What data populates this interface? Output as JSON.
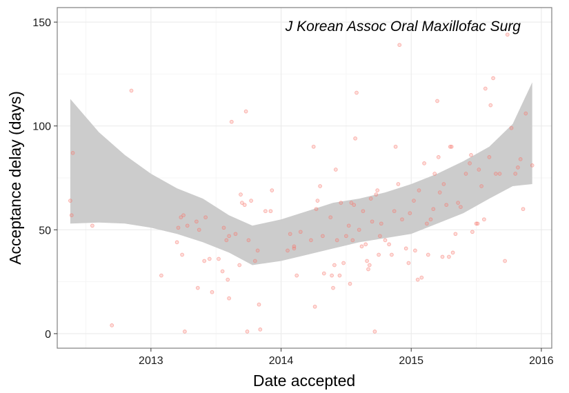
{
  "chart_data": {
    "type": "scatter",
    "title": "J Korean Assoc Oral Maxillofac Surg",
    "xlabel": "Date accepted",
    "ylabel": "Acceptance delay (days)",
    "xlim": [
      2012.28,
      2016.08
    ],
    "ylim": [
      -7,
      157
    ],
    "xticks": [
      2013,
      2014,
      2015,
      2016
    ],
    "xtick_labels": [
      "2013",
      "2014",
      "2015",
      "2016"
    ],
    "yticks": [
      0,
      50,
      100,
      150
    ],
    "ytick_labels": [
      "0",
      "50",
      "100",
      "150"
    ],
    "grid": true,
    "colors": {
      "point": "#F8766D",
      "band": "#CCCCCC",
      "grid_major": "#EBEBEB",
      "grid_minor": "#F5F5F5",
      "panel_border": "#7F7F7F"
    },
    "band": {
      "name": "loess 95% confidence band",
      "x": [
        2012.38,
        2012.6,
        2012.8,
        2013.0,
        2013.2,
        2013.4,
        2013.6,
        2013.78,
        2014.0,
        2014.2,
        2014.4,
        2014.6,
        2014.8,
        2015.0,
        2015.2,
        2015.4,
        2015.6,
        2015.78,
        2015.93
      ],
      "lower": [
        53,
        53.5,
        53,
        51,
        48,
        44,
        39,
        33,
        35,
        38,
        41,
        44,
        46,
        48,
        53,
        58,
        65,
        71,
        72
      ],
      "upper": [
        113,
        97,
        86,
        77,
        70,
        65,
        57,
        52,
        55,
        59,
        63,
        65,
        68,
        72,
        77,
        83,
        90,
        101,
        121
      ]
    },
    "series": [
      {
        "name": "articles",
        "points": [
          [
            2012.38,
            64
          ],
          [
            2012.39,
            57
          ],
          [
            2012.4,
            87
          ],
          [
            2012.55,
            52
          ],
          [
            2012.7,
            4
          ],
          [
            2012.85,
            117
          ],
          [
            2013.08,
            28
          ],
          [
            2013.2,
            44
          ],
          [
            2013.21,
            51
          ],
          [
            2013.23,
            56
          ],
          [
            2013.24,
            38
          ],
          [
            2013.25,
            57
          ],
          [
            2013.26,
            1
          ],
          [
            2013.28,
            52
          ],
          [
            2013.35,
            54
          ],
          [
            2013.36,
            22
          ],
          [
            2013.37,
            50
          ],
          [
            2013.41,
            35
          ],
          [
            2013.42,
            56
          ],
          [
            2013.45,
            36
          ],
          [
            2013.47,
            20
          ],
          [
            2013.52,
            36
          ],
          [
            2013.55,
            30
          ],
          [
            2013.56,
            51
          ],
          [
            2013.58,
            45
          ],
          [
            2013.59,
            26
          ],
          [
            2013.6,
            47
          ],
          [
            2013.6,
            17
          ],
          [
            2013.62,
            102
          ],
          [
            2013.65,
            48
          ],
          [
            2013.68,
            33
          ],
          [
            2013.69,
            67
          ],
          [
            2013.7,
            63
          ],
          [
            2013.72,
            62
          ],
          [
            2013.73,
            107
          ],
          [
            2013.74,
            1
          ],
          [
            2013.75,
            45
          ],
          [
            2013.77,
            64
          ],
          [
            2013.8,
            35
          ],
          [
            2013.82,
            40
          ],
          [
            2013.83,
            14
          ],
          [
            2013.84,
            2
          ],
          [
            2013.88,
            59
          ],
          [
            2013.92,
            59
          ],
          [
            2013.93,
            69
          ],
          [
            2014.05,
            40
          ],
          [
            2014.07,
            48
          ],
          [
            2014.1,
            42
          ],
          [
            2014.1,
            41
          ],
          [
            2014.12,
            28
          ],
          [
            2014.15,
            49
          ],
          [
            2014.23,
            45
          ],
          [
            2014.25,
            90
          ],
          [
            2014.26,
            13
          ],
          [
            2014.27,
            60
          ],
          [
            2014.28,
            64
          ],
          [
            2014.3,
            71
          ],
          [
            2014.32,
            47
          ],
          [
            2014.33,
            29
          ],
          [
            2014.38,
            56
          ],
          [
            2014.39,
            28
          ],
          [
            2014.4,
            22
          ],
          [
            2014.41,
            33
          ],
          [
            2014.42,
            79
          ],
          [
            2014.43,
            45
          ],
          [
            2014.45,
            28
          ],
          [
            2014.46,
            63
          ],
          [
            2014.48,
            34
          ],
          [
            2014.5,
            47
          ],
          [
            2014.52,
            52
          ],
          [
            2014.53,
            24
          ],
          [
            2014.54,
            63
          ],
          [
            2014.55,
            45
          ],
          [
            2014.56,
            62
          ],
          [
            2014.57,
            94
          ],
          [
            2014.58,
            116
          ],
          [
            2014.6,
            50
          ],
          [
            2014.62,
            42
          ],
          [
            2014.63,
            59
          ],
          [
            2014.65,
            43
          ],
          [
            2014.66,
            35
          ],
          [
            2014.67,
            31
          ],
          [
            2014.68,
            33
          ],
          [
            2014.69,
            65
          ],
          [
            2014.7,
            54
          ],
          [
            2014.72,
            1
          ],
          [
            2014.73,
            67
          ],
          [
            2014.74,
            69
          ],
          [
            2014.75,
            38
          ],
          [
            2014.76,
            47
          ],
          [
            2014.77,
            53
          ],
          [
            2014.8,
            45
          ],
          [
            2014.83,
            43
          ],
          [
            2014.85,
            38
          ],
          [
            2014.87,
            59
          ],
          [
            2014.88,
            90
          ],
          [
            2014.9,
            72
          ],
          [
            2014.91,
            139
          ],
          [
            2014.93,
            55
          ],
          [
            2014.96,
            41
          ],
          [
            2014.98,
            34
          ],
          [
            2014.99,
            58
          ],
          [
            2015.02,
            64
          ],
          [
            2015.03,
            40
          ],
          [
            2015.05,
            26
          ],
          [
            2015.06,
            69
          ],
          [
            2015.08,
            27
          ],
          [
            2015.1,
            82
          ],
          [
            2015.12,
            53
          ],
          [
            2015.13,
            38
          ],
          [
            2015.15,
            55
          ],
          [
            2015.17,
            60
          ],
          [
            2015.18,
            77
          ],
          [
            2015.2,
            112
          ],
          [
            2015.21,
            85
          ],
          [
            2015.22,
            68
          ],
          [
            2015.24,
            37
          ],
          [
            2015.25,
            72
          ],
          [
            2015.27,
            62
          ],
          [
            2015.29,
            37
          ],
          [
            2015.3,
            90
          ],
          [
            2015.31,
            90
          ],
          [
            2015.32,
            39
          ],
          [
            2015.34,
            48
          ],
          [
            2015.36,
            63
          ],
          [
            2015.38,
            61
          ],
          [
            2015.42,
            77
          ],
          [
            2015.45,
            82
          ],
          [
            2015.46,
            86
          ],
          [
            2015.47,
            49
          ],
          [
            2015.5,
            53
          ],
          [
            2015.51,
            53
          ],
          [
            2015.52,
            79
          ],
          [
            2015.54,
            71
          ],
          [
            2015.56,
            55
          ],
          [
            2015.57,
            118
          ],
          [
            2015.6,
            85
          ],
          [
            2015.61,
            110
          ],
          [
            2015.63,
            123
          ],
          [
            2015.65,
            77
          ],
          [
            2015.68,
            77
          ],
          [
            2015.72,
            35
          ],
          [
            2015.74,
            144
          ],
          [
            2015.77,
            99
          ],
          [
            2015.8,
            77
          ],
          [
            2015.82,
            80
          ],
          [
            2015.84,
            84
          ],
          [
            2015.86,
            60
          ],
          [
            2015.88,
            106
          ],
          [
            2015.93,
            81
          ]
        ]
      }
    ]
  }
}
